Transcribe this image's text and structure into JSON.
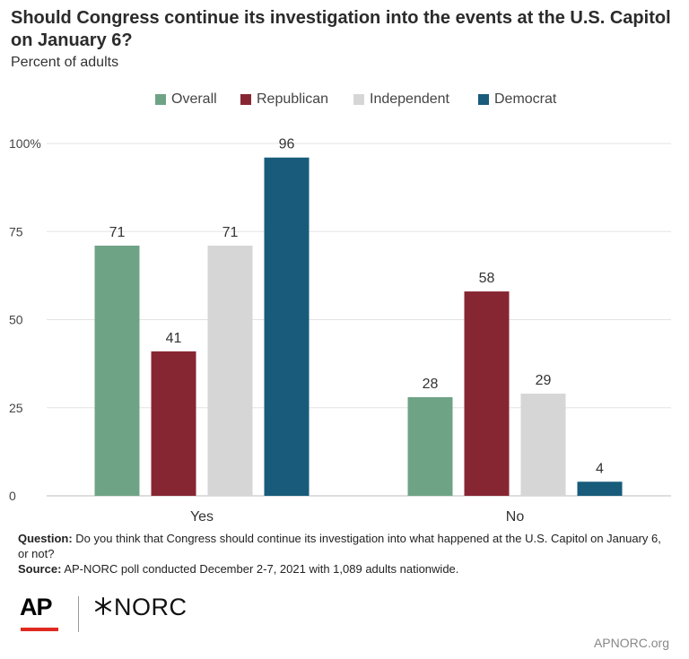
{
  "header": {
    "title": "Should Congress continue its investigation into the events at the U.S. Capitol on January 6?",
    "subtitle": "Percent of adults"
  },
  "legend": [
    {
      "label": "Overall",
      "color": "#6fa386"
    },
    {
      "label": "Republican",
      "color": "#872633"
    },
    {
      "label": "Independent",
      "color": "#d6d6d6"
    },
    {
      "label": "Democrat",
      "color": "#185b7a"
    }
  ],
  "chart_data": {
    "type": "bar",
    "categories": [
      "Yes",
      "No"
    ],
    "series": [
      {
        "name": "Overall",
        "values": [
          71,
          28
        ],
        "color": "#6fa386"
      },
      {
        "name": "Republican",
        "values": [
          41,
          58
        ],
        "color": "#872633"
      },
      {
        "name": "Independent",
        "values": [
          71,
          29
        ],
        "color": "#d6d6d6"
      },
      {
        "name": "Democrat",
        "values": [
          96,
          4
        ],
        "color": "#185b7a"
      }
    ],
    "yticks": [
      0,
      25,
      50,
      75,
      100
    ],
    "ytick_labels": [
      "0",
      "25",
      "50",
      "75",
      "100%"
    ],
    "ylim": [
      0,
      100
    ],
    "grid": true,
    "legend_position": "top"
  },
  "notes": {
    "question_label": "Question:",
    "question_text": "Do you think that Congress should continue its investigation into what happened at the U.S. Capitol on January 6, or not?",
    "source_label": "Source:",
    "source_text": "AP-NORC poll conducted December 2-7, 2021 with 1,089 adults nationwide."
  },
  "footer": {
    "logo_ap": "AP",
    "logo_norc": "NORC",
    "site": "APNORC.org"
  }
}
